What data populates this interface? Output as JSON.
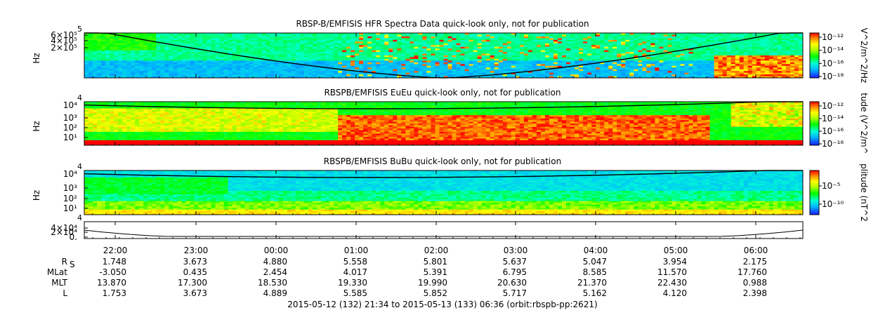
{
  "footer": "2015-05-12 (132) 21:34 to 2015-05-13 (133) 06:36 (orbit:rbspb-pp:2621)",
  "chart_data": [
    {
      "type": "heatmap",
      "title": "RBSP-B/EMFISIS  HFR Spectra Data quick-look only, not for publication",
      "ylabel": "Hz",
      "yticks": [
        "6×10⁵",
        "4×10⁵",
        "2×10⁵"
      ],
      "ytick_top": "5",
      "colorbar_label": "V^2/m^2/Hz",
      "colorbar_ticks": [
        "10⁻¹²",
        "10⁻¹⁴",
        "10⁻¹⁶",
        "10⁻¹⁸"
      ]
    },
    {
      "type": "heatmap",
      "title": "RBSPB/EMFISIS  EuEu quick-look only, not for publication",
      "ylabel": "Hz",
      "yticks": [
        "10⁴",
        "10³",
        "10²",
        "10¹"
      ],
      "ytick_top": "4",
      "colorbar_label": "tude (V^2/m^",
      "colorbar_ticks": [
        "10⁻¹²",
        "10⁻¹⁴",
        "10⁻¹⁶",
        "10⁻¹⁸"
      ]
    },
    {
      "type": "heatmap",
      "title": "RBSPB/EMFISIS  BuBu quick-look only, not for publication",
      "ylabel": "Hz",
      "yticks": [
        "10⁴",
        "10³",
        "10²",
        "10¹"
      ],
      "ytick_top": "4",
      "colorbar_label": "plitude (nT^2",
      "colorbar_ticks": [
        "10⁻⁵",
        "10⁻¹⁰"
      ]
    },
    {
      "type": "line",
      "yticks": [
        "4×10⁴",
        "2×10⁴",
        "0."
      ],
      "ytick_top": "4"
    }
  ],
  "ephemeris": {
    "times": [
      "22:00",
      "23:00",
      "00:00",
      "01:00",
      "02:00",
      "03:00",
      "04:00",
      "05:00",
      "06:00"
    ],
    "rows": [
      {
        "label": "R",
        "sub": "S",
        "values": [
          "1.748",
          "3.673",
          "4.880",
          "5.558",
          "5.801",
          "5.637",
          "5.047",
          "3.954",
          "2.175"
        ]
      },
      {
        "label": "MLat",
        "sub": "",
        "values": [
          "-3.050",
          "0.435",
          "2.454",
          "4.017",
          "5.391",
          "6.795",
          "8.585",
          "11.570",
          "17.760"
        ]
      },
      {
        "label": "MLT",
        "sub": "",
        "values": [
          "13.870",
          "17.300",
          "18.530",
          "19.330",
          "19.990",
          "20.630",
          "21.370",
          "22.430",
          "0.988"
        ]
      },
      {
        "label": "L",
        "sub": "",
        "values": [
          "1.753",
          "3.673",
          "4.889",
          "5.585",
          "5.852",
          "5.717",
          "5.162",
          "4.120",
          "2.398"
        ]
      }
    ]
  }
}
